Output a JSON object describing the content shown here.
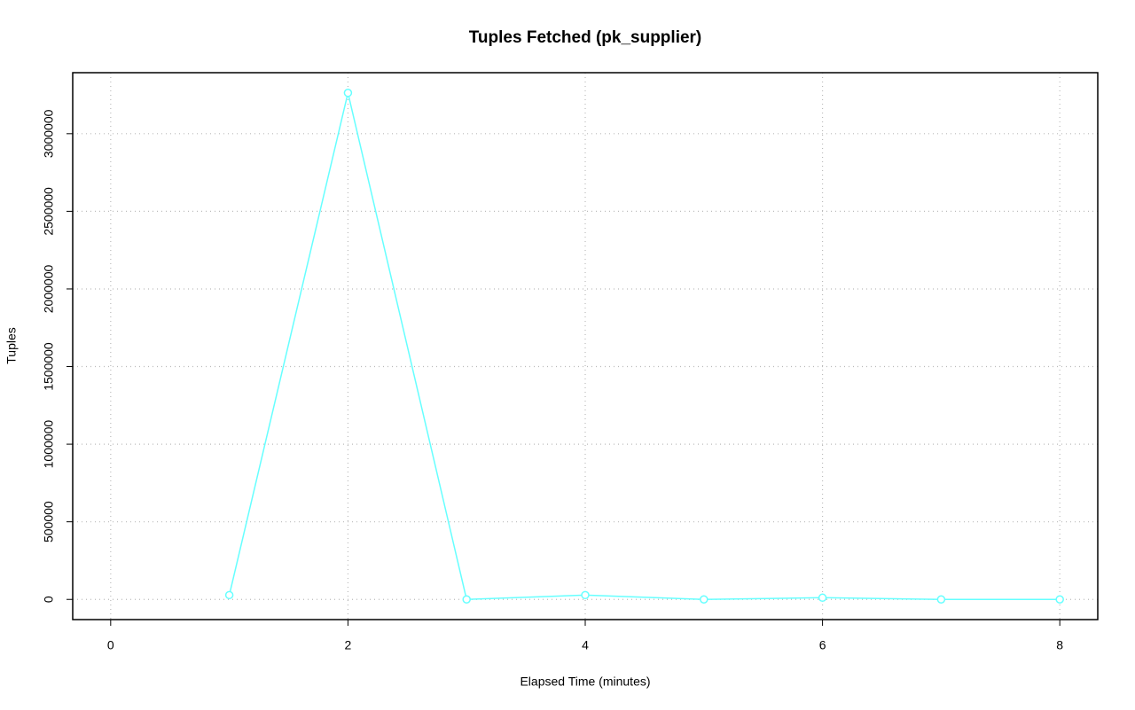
{
  "chart_data": {
    "type": "line",
    "title": "Tuples Fetched (pk_supplier)",
    "x_label": "Elapsed Time (minutes)",
    "y_label": "Tuples",
    "x": [
      1,
      2,
      3,
      4,
      5,
      6,
      7,
      8
    ],
    "values": [
      28000,
      3263000,
      0,
      28000,
      0,
      11000,
      0,
      0
    ],
    "color": "#66ffff",
    "xlim": [
      -0.32,
      8.32
    ],
    "xticks": [
      0,
      2,
      4,
      6,
      8
    ],
    "ylim": [
      -130000,
      3393000
    ],
    "yticks": [
      0,
      500000,
      1000000,
      1500000,
      2000000,
      2500000,
      3000000
    ],
    "grid": true
  }
}
